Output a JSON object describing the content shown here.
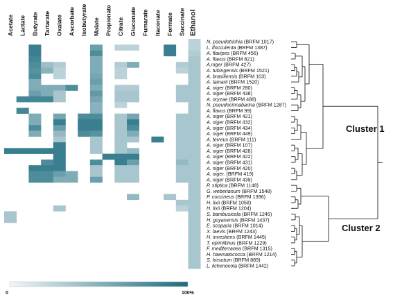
{
  "chart_data": {
    "type": "heatmap",
    "columns": [
      "Acetate",
      "Lactate",
      "Butyrate",
      "Tartarate",
      "Oxalate",
      "Ascorbate",
      "Isobutyrate",
      "Malate",
      "Propionate",
      "Citrate",
      "Gluconate",
      "Fumarate",
      "Itaconate",
      "Formate",
      "Succinate",
      "Ethanol"
    ],
    "rows": [
      {
        "italic": "N. pseudotrichia",
        "rest": " (BRFM 1017)",
        "values": [
          0,
          0,
          0,
          0,
          0,
          0,
          0,
          0,
          0,
          0,
          0,
          0,
          0,
          0,
          0,
          0.2
        ]
      },
      {
        "italic": "L. flocculenta",
        "rest": " (BRFM 1387)",
        "values": [
          0,
          0,
          0.85,
          0,
          0,
          0,
          0,
          0.6,
          0,
          0.2,
          0.2,
          0,
          0,
          0.85,
          0,
          0.2
        ]
      },
      {
        "italic": "A. flavipes",
        "rest": " (BRFM 456)",
        "values": [
          0,
          0,
          0.85,
          0,
          0,
          0,
          0,
          0.75,
          0,
          0,
          0,
          0,
          0,
          0.85,
          0,
          0.25
        ]
      },
      {
        "italic": "A. flavus",
        "rest": " (BRFM 821)",
        "values": [
          0,
          0,
          0.8,
          0,
          0,
          0,
          0,
          0.5,
          0,
          0,
          0,
          0,
          0,
          0,
          0,
          0.3
        ]
      },
      {
        "italic": "A.niger",
        "rest": " (BRFM 427)",
        "values": [
          0,
          0,
          0.75,
          0.35,
          0.25,
          0,
          0,
          0.5,
          0,
          0.25,
          0.5,
          0,
          0,
          0,
          0.25,
          0.3
        ]
      },
      {
        "italic": "A. tubingensis",
        "rest": " (BRFM 1521)",
        "values": [
          0,
          0,
          0.7,
          0.45,
          0.2,
          0,
          0,
          0.5,
          0,
          0.2,
          0,
          0,
          0,
          0,
          0.2,
          0.3
        ]
      },
      {
        "italic": "A. brasiliensis",
        "rest": " (BRFM 103)",
        "values": [
          0,
          0,
          0.75,
          0,
          0.2,
          0,
          0,
          0.55,
          0,
          0.2,
          0,
          0,
          0,
          0,
          0,
          0.3
        ]
      },
      {
        "italic": "A. tamarii",
        "rest": " (BRFM 1520)",
        "values": [
          0,
          0,
          0.5,
          0,
          0,
          0,
          0,
          0.6,
          0,
          0,
          0,
          0,
          0,
          0,
          0,
          0.3
        ]
      },
      {
        "italic": "A. niger",
        "rest": " (BRFM 280)",
        "values": [
          0,
          0,
          0.5,
          0.5,
          0.5,
          0.75,
          0,
          0.5,
          0,
          0.25,
          0.25,
          0,
          0,
          0,
          0.3,
          0.3
        ]
      },
      {
        "italic": "A. niger",
        "rest": " (BRFM 438)",
        "values": [
          0,
          0,
          0.6,
          0.5,
          0.3,
          0,
          0,
          0.65,
          0,
          0.3,
          0.3,
          0,
          0,
          0,
          0.3,
          0.3
        ]
      },
      {
        "italic": "A. oryzae",
        "rest": " (BRFM 488)",
        "values": [
          0,
          0.8,
          0.8,
          0.8,
          0.3,
          0,
          0,
          0.55,
          0,
          0.3,
          0.3,
          0,
          0,
          0,
          0.3,
          0.3
        ]
      },
      {
        "italic": "N. pseudocinnabarina",
        "rest": " (BRFM 1287)",
        "values": [
          0,
          0,
          0,
          0,
          0,
          0,
          0,
          0.45,
          0,
          0.2,
          0,
          0,
          0,
          0,
          0,
          0.3
        ]
      },
      {
        "italic": "A. flavus",
        "rest": " (BRFM 99)",
        "values": [
          0,
          0.8,
          0,
          0,
          0,
          0,
          0,
          0.45,
          0,
          0,
          0,
          0,
          0,
          0,
          0,
          0.3
        ]
      },
      {
        "italic": "A. niger",
        "rest": " (BRFM 421)",
        "values": [
          0,
          0,
          0.5,
          0,
          0.55,
          0,
          0.75,
          0.75,
          0,
          0.3,
          0.55,
          0,
          0,
          0,
          0.3,
          0.3
        ]
      },
      {
        "italic": "A. niger",
        "rest": " (BRFM 432)",
        "values": [
          0,
          0,
          0.5,
          0,
          0.85,
          0,
          0.85,
          0.85,
          0,
          0.3,
          0.85,
          0,
          0,
          0,
          0.3,
          0.3
        ]
      },
      {
        "italic": "A. niger",
        "rest": " (BRFM 434)",
        "values": [
          0,
          0,
          0.75,
          0,
          0.6,
          0,
          0.85,
          0.85,
          0,
          0.3,
          0.75,
          0,
          0,
          0,
          0.3,
          0.3
        ]
      },
      {
        "italic": "A. niger",
        "rest": " (BRFM 449)",
        "values": [
          0,
          0,
          0.5,
          0,
          0.4,
          0,
          0.75,
          0.7,
          0,
          0.3,
          0.5,
          0,
          0,
          0,
          0.3,
          0.3
        ]
      },
      {
        "italic": "A. terreus",
        "rest": " (BRFM 111)",
        "values": [
          0,
          0,
          0,
          0,
          0.3,
          0,
          0,
          0.3,
          0,
          0.3,
          0.3,
          0,
          0.85,
          0,
          0.3,
          0.3
        ]
      },
      {
        "italic": "A. niger",
        "rest": " (BRFM 107)",
        "values": [
          0,
          0,
          0,
          0,
          0.85,
          0,
          0,
          0.3,
          0,
          0.3,
          0,
          0,
          0,
          0,
          0.3,
          0.3
        ]
      },
      {
        "italic": "A. niger",
        "rest": " (BRFM 428)",
        "values": [
          0.85,
          0.85,
          0.85,
          0.85,
          0.85,
          0,
          0,
          0.3,
          0,
          0.3,
          0.4,
          0,
          0,
          0,
          0.3,
          0.3
        ]
      },
      {
        "italic": "A. niger",
        "rest": " (BRFM 422)",
        "values": [
          0,
          0,
          0,
          0,
          0.85,
          0,
          0,
          0,
          0.85,
          0.85,
          0.85,
          0,
          0,
          0,
          0.3,
          0.3
        ]
      },
      {
        "italic": "A. niger",
        "rest": " (BRFM 431)",
        "values": [
          0,
          0,
          0,
          0.75,
          0.85,
          0,
          0,
          0.75,
          0,
          0.85,
          0.6,
          0,
          0,
          0,
          0.4,
          0.3
        ]
      },
      {
        "italic": "A. niger",
        "rest": " (BRFM 420)",
        "values": [
          0,
          0,
          0.85,
          0.85,
          0.85,
          0,
          0,
          0.3,
          0,
          0.3,
          0.3,
          0,
          0,
          0,
          0.3,
          0.3
        ]
      },
      {
        "italic": "A. niger.",
        "rest": " (BRFM 419)",
        "values": [
          0,
          0,
          0.75,
          0.75,
          0.6,
          0.5,
          0,
          0.3,
          0,
          0.3,
          0.3,
          0,
          0,
          0,
          0.3,
          0.3
        ]
      },
      {
        "italic": "A. niger",
        "rest": " (BRFM 439)",
        "values": [
          0,
          0,
          0.75,
          0.75,
          0.5,
          0.5,
          0,
          0.6,
          0,
          0.3,
          0.3,
          0,
          0,
          0,
          0.3,
          0.3
        ]
      },
      {
        "italic": "P. stiptica",
        "rest": " (BRFM 1148)",
        "values": [
          0,
          0,
          0,
          0,
          0,
          0,
          0,
          0,
          0,
          0,
          0,
          0,
          0,
          0,
          0,
          0.3
        ]
      },
      {
        "italic": "G. weberianum",
        "rest": " (BRFM 1548)",
        "values": [
          0,
          0,
          0,
          0,
          0,
          0,
          0,
          0,
          0,
          0,
          0,
          0,
          0,
          0,
          0,
          0.3
        ]
      },
      {
        "italic": "P. coccineus",
        "rest": " (BRFM 1396)",
        "values": [
          0,
          0,
          0,
          0,
          0,
          0,
          0,
          0,
          0,
          0,
          0.4,
          0,
          0,
          0.3,
          0,
          0.3
        ]
      },
      {
        "italic": "H. lixii",
        "rest": " (BRFM 1058)",
        "values": [
          0,
          0,
          0,
          0,
          0,
          0,
          0,
          0,
          0,
          0,
          0,
          0,
          0,
          0,
          0.3,
          0.3
        ]
      },
      {
        "italic": "H. lixii",
        "rest": " (BRFM 1204)",
        "values": [
          0,
          0,
          0,
          0,
          0.3,
          0,
          0,
          0,
          0,
          0,
          0,
          0,
          0,
          0,
          0.2,
          0.3
        ]
      },
      {
        "italic": "S. bambusicola",
        "rest": " (BRFM 1245)",
        "values": [
          0.3,
          0,
          0,
          0,
          0,
          0,
          0,
          0,
          0,
          0,
          0,
          0,
          0,
          0,
          0,
          0.3
        ]
      },
      {
        "italic": "H. guyanensis",
        "rest": " (BRFM 1437)",
        "values": [
          0.3,
          0,
          0,
          0,
          0,
          0,
          0,
          0,
          0,
          0,
          0,
          0,
          0,
          0,
          0,
          0.3
        ]
      },
      {
        "italic": "E. scoparia",
        "rest": " (BRFM 1014)",
        "values": [
          0,
          0,
          0,
          0,
          0,
          0,
          0,
          0,
          0,
          0,
          0,
          0,
          0,
          0,
          0,
          0.3
        ]
      },
      {
        "italic": "X. laevis",
        "rest": " (BRFM 1243)",
        "values": [
          0,
          0,
          0,
          0,
          0,
          0,
          0,
          0,
          0,
          0,
          0,
          0,
          0,
          0,
          0,
          0.3
        ]
      },
      {
        "italic": "H. investiens",
        "rest": " (BRFM 1445)",
        "values": [
          0,
          0,
          0,
          0,
          0,
          0,
          0,
          0,
          0,
          0,
          0,
          0,
          0,
          0,
          0,
          0.3
        ]
      },
      {
        "italic": "T. epimiltinus",
        "rest": " (BRFM 1229)",
        "values": [
          0,
          0,
          0,
          0,
          0,
          0,
          0,
          0,
          0,
          0,
          0,
          0,
          0,
          0,
          0,
          0.3
        ]
      },
      {
        "italic": "F. mediterranea",
        "rest": " (BRFM 1315)",
        "values": [
          0,
          0,
          0,
          0,
          0,
          0,
          0,
          0,
          0,
          0,
          0,
          0,
          0,
          0,
          0,
          0.3
        ]
      },
      {
        "italic": "H. haematococca",
        "rest": " (BRFM 1214)",
        "values": [
          0,
          0,
          0,
          0,
          0,
          0,
          0,
          0,
          0,
          0,
          0,
          0,
          0,
          0,
          0,
          0.3
        ]
      },
      {
        "italic": "S. hirsutum",
        "rest": " (BRFM 889)",
        "values": [
          0,
          0,
          0,
          0,
          0,
          0,
          0,
          0,
          0,
          0,
          0,
          0,
          0,
          0,
          0,
          0.3
        ]
      },
      {
        "italic": "L. lichenocola",
        "rest": " (BRFM 1442)",
        "values": [
          0,
          0,
          0,
          0,
          0,
          0,
          0,
          0,
          0,
          0,
          0,
          0,
          0,
          0,
          0,
          0.3
        ]
      }
    ],
    "clusters": [
      {
        "label": "Cluster 1",
        "first_row": 0,
        "last_row": 24
      },
      {
        "label": "Cluster 2",
        "first_row": 25,
        "last_row": 39
      }
    ],
    "color_scale": {
      "min_label": "0",
      "max_label": "100%",
      "low_color": "#e4ecef",
      "high_color": "#1b6c7f"
    }
  }
}
